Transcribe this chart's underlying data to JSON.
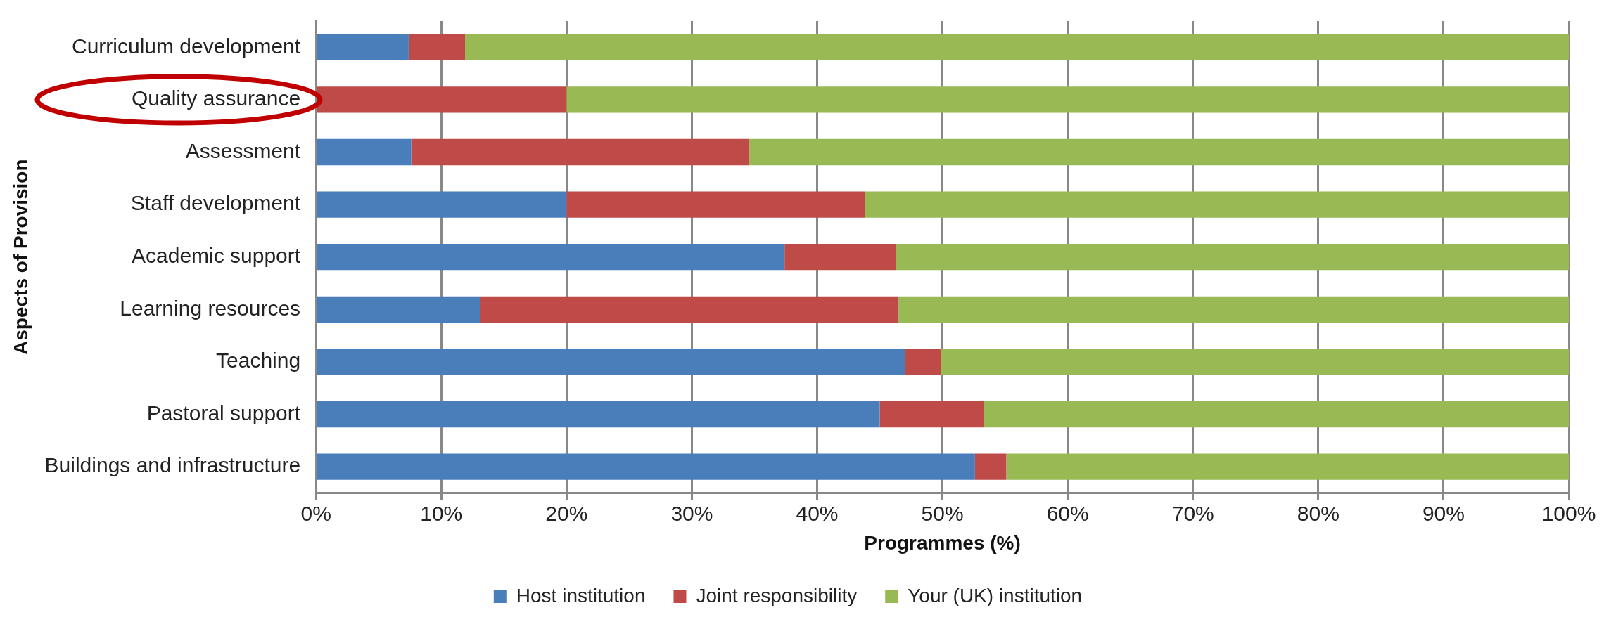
{
  "chart_data": {
    "type": "bar",
    "orientation": "horizontal",
    "stacked": true,
    "xlabel": "Programmes (%)",
    "ylabel": "Aspects of Provision",
    "categories": [
      "Curriculum development",
      "Quality assurance",
      "Assessment",
      "Staff development",
      "Academic support",
      "Learning resources",
      "Teaching",
      "Pastoral support",
      "Buildings and infrastructure"
    ],
    "series": [
      {
        "name": "Host institution",
        "color": "#4a7ebb",
        "values": [
          7.4,
          0,
          7.6,
          20,
          37.4,
          13.1,
          47,
          45,
          52.6
        ]
      },
      {
        "name": "Joint responsibility",
        "color": "#be4b48",
        "values": [
          4.5,
          20,
          27,
          23.8,
          8.9,
          33.4,
          2.9,
          8.3,
          2.5
        ]
      },
      {
        "name": "Your (UK) institution",
        "color": "#98b954",
        "values": [
          88.1,
          80,
          65.4,
          56.2,
          53.7,
          53.5,
          50.1,
          46.7,
          44.9
        ]
      }
    ],
    "xlim": [
      0,
      100
    ],
    "xticks": [
      {
        "value": 0,
        "label": "0%"
      },
      {
        "value": 10,
        "label": "10%"
      },
      {
        "value": 20,
        "label": "20%"
      },
      {
        "value": 30,
        "label": "30%"
      },
      {
        "value": 40,
        "label": "40%"
      },
      {
        "value": 50,
        "label": "50%"
      },
      {
        "value": 60,
        "label": "60%"
      },
      {
        "value": 70,
        "label": "70%"
      },
      {
        "value": 80,
        "label": "80%"
      },
      {
        "value": 90,
        "label": "90%"
      },
      {
        "value": 100,
        "label": "100%"
      }
    ],
    "grid": "x",
    "legend": "bottom"
  }
}
